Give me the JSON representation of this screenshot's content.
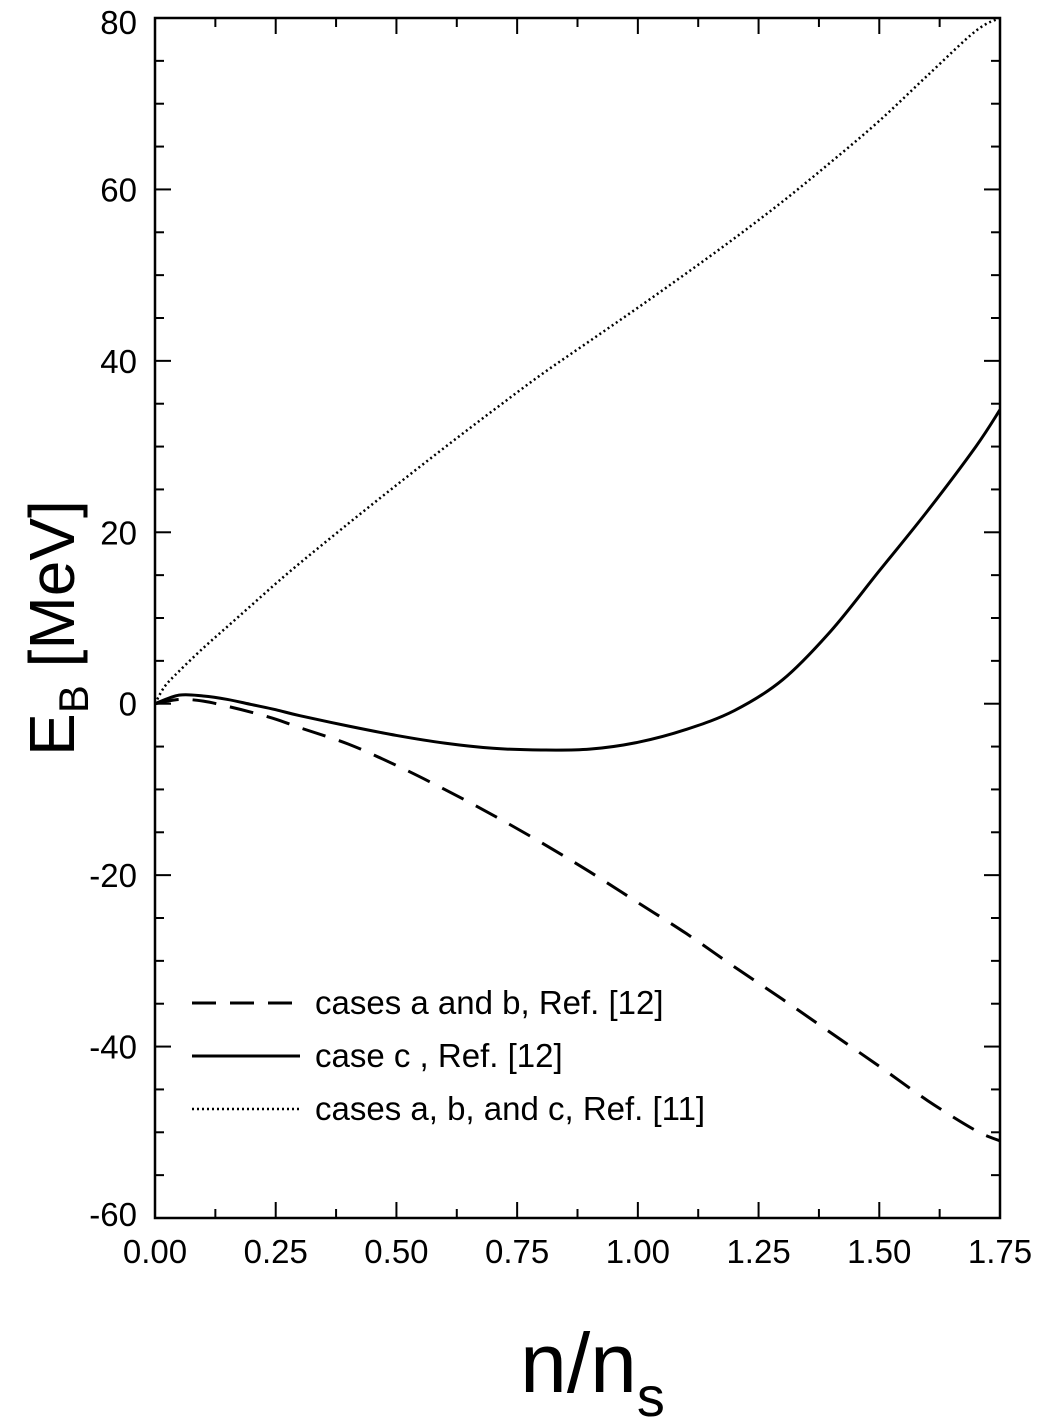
{
  "chart_data": {
    "type": "line",
    "xlabel": {
      "main": "n/n",
      "sub": "s"
    },
    "ylabel": {
      "main": "E",
      "sub": "B",
      "unit": " [MeV]"
    },
    "xlim": [
      0.0,
      1.75
    ],
    "ylim": [
      -60,
      80
    ],
    "x_ticks": [
      0.0,
      0.25,
      0.5,
      0.75,
      1.0,
      1.25,
      1.5,
      1.75
    ],
    "x_tick_labels": [
      "0.00",
      "0.25",
      "0.50",
      "0.75",
      "1.00",
      "1.25",
      "1.50",
      "1.75"
    ],
    "y_ticks": [
      -60,
      -40,
      -20,
      0,
      20,
      40,
      60,
      80
    ],
    "y_tick_labels": [
      "-60",
      "-40",
      "-20",
      "0",
      "20",
      "40",
      "60",
      "80"
    ],
    "grid": false,
    "legend_position": "bottom-left",
    "series": [
      {
        "name": "cases a and b, Ref. [12]",
        "style": "dashed",
        "x": [
          0.0,
          0.05,
          0.1,
          0.15,
          0.2,
          0.25,
          0.3,
          0.4,
          0.5,
          0.6,
          0.7,
          0.8,
          0.9,
          1.0,
          1.1,
          1.2,
          1.3,
          1.4,
          1.5,
          1.6,
          1.7,
          1.75
        ],
        "y": [
          0.0,
          0.5,
          0.3,
          -0.3,
          -1.0,
          -1.8,
          -2.8,
          -4.7,
          -7.2,
          -10.0,
          -13.0,
          -16.2,
          -19.6,
          -23.2,
          -26.8,
          -30.7,
          -34.5,
          -38.4,
          -42.3,
          -46.3,
          -49.8,
          -51.0
        ]
      },
      {
        "name": "case c , Ref. [12]",
        "style": "solid",
        "x": [
          0.0,
          0.05,
          0.1,
          0.15,
          0.2,
          0.25,
          0.3,
          0.4,
          0.5,
          0.6,
          0.7,
          0.8,
          0.9,
          1.0,
          1.1,
          1.2,
          1.3,
          1.4,
          1.5,
          1.6,
          1.7,
          1.75
        ],
        "y": [
          0.0,
          1.0,
          0.9,
          0.5,
          -0.1,
          -0.7,
          -1.4,
          -2.6,
          -3.7,
          -4.6,
          -5.2,
          -5.4,
          -5.3,
          -4.5,
          -3.0,
          -0.8,
          2.8,
          8.5,
          15.5,
          22.5,
          30.0,
          34.3
        ]
      },
      {
        "name": "cases a, b, and c, Ref. [11]",
        "style": "dotted",
        "x": [
          0.0,
          0.02,
          0.05,
          0.1,
          0.15,
          0.2,
          0.25,
          0.3,
          0.4,
          0.5,
          0.6,
          0.7,
          0.8,
          0.9,
          1.0,
          1.1,
          1.2,
          1.3,
          1.4,
          1.5,
          1.6,
          1.7,
          1.75
        ],
        "y": [
          0.0,
          2.0,
          3.8,
          6.5,
          9.0,
          11.5,
          14.0,
          16.4,
          21.0,
          25.5,
          29.9,
          34.2,
          38.4,
          42.3,
          46.2,
          50.2,
          54.3,
          58.6,
          63.2,
          68.0,
          73.3,
          78.5,
          80.0
        ]
      }
    ]
  }
}
